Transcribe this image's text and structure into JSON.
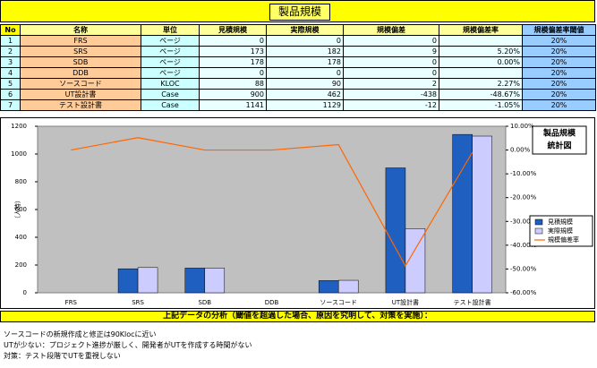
{
  "header": {
    "title": "製品規模"
  },
  "table": {
    "columns": [
      "No",
      "名称",
      "単位",
      "見積規模",
      "実際規模",
      "規模偏差",
      "規模偏差率",
      "規模偏差率閾値"
    ],
    "rows": [
      [
        1,
        "FRS",
        "ページ",
        0,
        0,
        0,
        null,
        "20%"
      ],
      [
        2,
        "SRS",
        "ページ",
        173,
        182,
        9,
        "5.20%",
        "20%"
      ],
      [
        3,
        "SDB",
        "ページ",
        178,
        178,
        0,
        "0.00%",
        "20%"
      ],
      [
        4,
        "DDB",
        "ページ",
        0,
        0,
        0,
        null,
        "20%"
      ],
      [
        5,
        "ソースコード",
        "KLOC",
        88,
        90,
        2,
        "2.27%",
        "20%"
      ],
      [
        6,
        "UT設計書",
        "Case",
        900,
        462,
        -438,
        "-48.67%",
        "20%"
      ],
      [
        7,
        "テスト設計書",
        "Case",
        1141,
        1129,
        -12,
        "-1.05%",
        "20%"
      ]
    ]
  },
  "chart_data": {
    "type": "bar",
    "title": [
      "製品規模",
      "統計図"
    ],
    "y_label": "（人時）",
    "categories": [
      "FRS",
      "SRS",
      "SDB",
      "DDB",
      "ソースコード",
      "UT設計書",
      "テスト設計書"
    ],
    "series": [
      {
        "name": "見積規模",
        "color": "#1f5fbf",
        "values": [
          0,
          173,
          178,
          0,
          88,
          900,
          1141
        ]
      },
      {
        "name": "実際規模",
        "color": "#ccccff",
        "values": [
          0,
          182,
          178,
          0,
          90,
          462,
          1129
        ]
      },
      {
        "name": "規模偏差率",
        "color": "#ff6600",
        "type": "line",
        "axis": "y2",
        "values": [
          0,
          5.2,
          0,
          0,
          2.27,
          -48.67,
          -1.05
        ]
      }
    ],
    "ylim": [
      0,
      1200
    ],
    "yticks": [
      0,
      200,
      400,
      600,
      800,
      1000,
      1200
    ],
    "y2lim": [
      -60,
      10
    ],
    "y2ticks": [
      {
        "value": 10,
        "label": "10.00%"
      },
      {
        "value": 0,
        "label": "0.00%"
      },
      {
        "value": -10,
        "label": "-10.00%"
      },
      {
        "value": -20,
        "label": "-20.00%"
      },
      {
        "value": -30,
        "label": "-30.00%"
      },
      {
        "value": -40,
        "label": "-40.00%"
      },
      {
        "value": -50,
        "label": "-50.00%"
      },
      {
        "value": -60,
        "label": "-60.00%"
      }
    ],
    "legend": "right",
    "plot_background": "#c0c0c0"
  },
  "analysis": {
    "title": "上記データの分析（閾値を超過した場合、原因を究明して、対策を実施）：",
    "lines": [
      "ソースコードの新規作成と修正は90Klocに近い",
      "UTが少ない：プロジェクト進捗が厳しく、開発者がUTを作成する時間がない",
      "対策：テスト段階でUTを重視しない"
    ]
  }
}
